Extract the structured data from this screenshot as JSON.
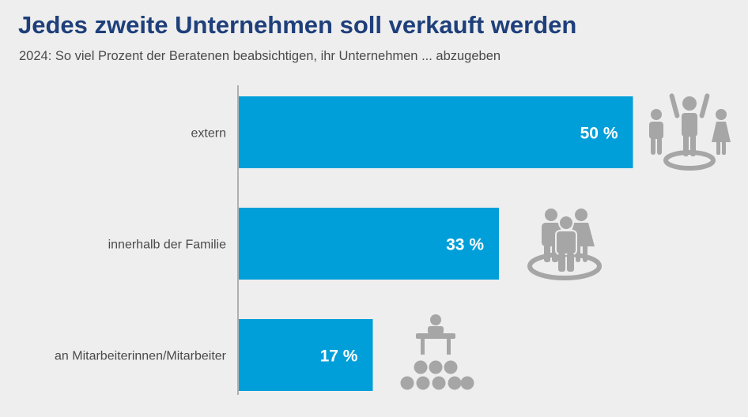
{
  "header": {
    "title": "Jedes zweite Unternehmen soll verkauft werden",
    "subtitle": "2024: So viel Prozent der Beratenen beabsichtigen, ihr Unternehmen ... abzugeben"
  },
  "colors": {
    "bar": "#009fd9",
    "title": "#1e3f7a",
    "icon": "#a6a6a6",
    "axis": "#9a9a9a"
  },
  "chart_data": {
    "type": "bar",
    "orientation": "horizontal",
    "title": "Jedes zweite Unternehmen soll verkauft werden",
    "subtitle": "2024: So viel Prozent der Beratenen beabsichtigen, ihr Unternehmen ... abzugeben",
    "categories": [
      "extern",
      "innerhalb der Familie",
      "an Mitarbeiterinnen/Mitarbeiter"
    ],
    "values": [
      50,
      33,
      17
    ],
    "value_labels": [
      "50 %",
      "33 %",
      "17 %"
    ],
    "unit": "%",
    "xlim": [
      0,
      100
    ],
    "icons": [
      "people-celebrating-icon",
      "family-group-icon",
      "employees-meeting-icon"
    ],
    "grid": false
  }
}
